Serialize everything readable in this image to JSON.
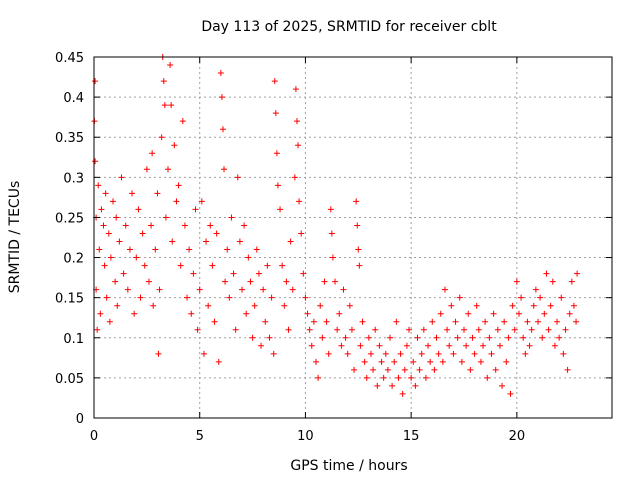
{
  "chart_data": {
    "type": "scatter",
    "title": "Day 113 of 2025, SRMTID for receiver cblt",
    "xlabel": "GPS time / hours",
    "ylabel": "SRMTID / TECUs",
    "xlim": [
      0,
      24.5
    ],
    "ylim": [
      0,
      0.45
    ],
    "xticks": [
      0,
      5,
      10,
      15,
      20
    ],
    "xtick_labels": [
      "0",
      "5",
      "10",
      "15",
      "20"
    ],
    "yticks": [
      0,
      0.05,
      0.1,
      0.15,
      0.2,
      0.25,
      0.3,
      0.35,
      0.4,
      0.45
    ],
    "ytick_labels": [
      "0",
      "0.05",
      "0.1",
      "0.15",
      "0.2",
      "0.25",
      "0.3",
      "0.35",
      "0.4",
      "0.45"
    ],
    "grid": true,
    "marker": "+",
    "color": "#ff0000",
    "series": [
      {
        "points": [
          [
            0.02,
            0.37
          ],
          [
            0.05,
            0.42
          ],
          [
            0.05,
            0.32
          ],
          [
            0.1,
            0.25
          ],
          [
            0.1,
            0.16
          ],
          [
            0.15,
            0.11
          ],
          [
            0.2,
            0.29
          ],
          [
            0.25,
            0.21
          ],
          [
            0.3,
            0.13
          ],
          [
            0.35,
            0.26
          ],
          [
            0.45,
            0.24
          ],
          [
            0.5,
            0.19
          ],
          [
            0.55,
            0.28
          ],
          [
            0.6,
            0.15
          ],
          [
            0.7,
            0.23
          ],
          [
            0.75,
            0.12
          ],
          [
            0.8,
            0.2
          ],
          [
            0.9,
            0.27
          ],
          [
            1.0,
            0.17
          ],
          [
            1.05,
            0.25
          ],
          [
            1.1,
            0.14
          ],
          [
            1.2,
            0.22
          ],
          [
            1.3,
            0.3
          ],
          [
            1.4,
            0.18
          ],
          [
            1.5,
            0.24
          ],
          [
            1.6,
            0.16
          ],
          [
            1.7,
            0.21
          ],
          [
            1.8,
            0.28
          ],
          [
            1.9,
            0.13
          ],
          [
            2.0,
            0.2
          ],
          [
            2.1,
            0.26
          ],
          [
            2.2,
            0.15
          ],
          [
            2.3,
            0.23
          ],
          [
            2.4,
            0.19
          ],
          [
            2.5,
            0.31
          ],
          [
            2.6,
            0.17
          ],
          [
            2.7,
            0.24
          ],
          [
            2.75,
            0.33
          ],
          [
            2.8,
            0.14
          ],
          [
            2.9,
            0.21
          ],
          [
            3.0,
            0.28
          ],
          [
            3.05,
            0.08
          ],
          [
            3.1,
            0.16
          ],
          [
            3.2,
            0.35
          ],
          [
            3.25,
            0.45
          ],
          [
            3.3,
            0.42
          ],
          [
            3.35,
            0.39
          ],
          [
            3.4,
            0.25
          ],
          [
            3.5,
            0.31
          ],
          [
            3.6,
            0.44
          ],
          [
            3.65,
            0.39
          ],
          [
            3.7,
            0.22
          ],
          [
            3.8,
            0.34
          ],
          [
            3.9,
            0.27
          ],
          [
            4.0,
            0.29
          ],
          [
            4.1,
            0.19
          ],
          [
            4.2,
            0.37
          ],
          [
            4.3,
            0.24
          ],
          [
            4.4,
            0.15
          ],
          [
            4.5,
            0.21
          ],
          [
            4.6,
            0.13
          ],
          [
            4.7,
            0.18
          ],
          [
            4.8,
            0.26
          ],
          [
            4.9,
            0.11
          ],
          [
            5.0,
            0.16
          ],
          [
            5.1,
            0.27
          ],
          [
            5.2,
            0.08
          ],
          [
            5.3,
            0.22
          ],
          [
            5.4,
            0.14
          ],
          [
            5.5,
            0.24
          ],
          [
            5.6,
            0.19
          ],
          [
            5.7,
            0.12
          ],
          [
            5.8,
            0.23
          ],
          [
            5.9,
            0.07
          ],
          [
            6.0,
            0.43
          ],
          [
            6.05,
            0.4
          ],
          [
            6.1,
            0.36
          ],
          [
            6.15,
            0.31
          ],
          [
            6.2,
            0.17
          ],
          [
            6.3,
            0.21
          ],
          [
            6.4,
            0.15
          ],
          [
            6.5,
            0.25
          ],
          [
            6.6,
            0.18
          ],
          [
            6.7,
            0.11
          ],
          [
            6.8,
            0.3
          ],
          [
            6.9,
            0.22
          ],
          [
            7.0,
            0.16
          ],
          [
            7.1,
            0.24
          ],
          [
            7.2,
            0.13
          ],
          [
            7.3,
            0.2
          ],
          [
            7.4,
            0.17
          ],
          [
            7.5,
            0.1
          ],
          [
            7.6,
            0.14
          ],
          [
            7.7,
            0.21
          ],
          [
            7.8,
            0.18
          ],
          [
            7.9,
            0.09
          ],
          [
            8.0,
            0.16
          ],
          [
            8.1,
            0.12
          ],
          [
            8.2,
            0.19
          ],
          [
            8.3,
            0.1
          ],
          [
            8.4,
            0.15
          ],
          [
            8.5,
            0.08
          ],
          [
            8.55,
            0.42
          ],
          [
            8.6,
            0.38
          ],
          [
            8.65,
            0.33
          ],
          [
            8.7,
            0.29
          ],
          [
            8.8,
            0.26
          ],
          [
            8.9,
            0.19
          ],
          [
            9.0,
            0.14
          ],
          [
            9.1,
            0.17
          ],
          [
            9.2,
            0.11
          ],
          [
            9.3,
            0.22
          ],
          [
            9.4,
            0.16
          ],
          [
            9.5,
            0.3
          ],
          [
            9.55,
            0.41
          ],
          [
            9.6,
            0.37
          ],
          [
            9.65,
            0.34
          ],
          [
            9.7,
            0.27
          ],
          [
            9.8,
            0.23
          ],
          [
            9.9,
            0.18
          ],
          [
            10.0,
            0.15
          ],
          [
            10.1,
            0.13
          ],
          [
            10.2,
            0.11
          ],
          [
            10.3,
            0.09
          ],
          [
            10.4,
            0.12
          ],
          [
            10.5,
            0.07
          ],
          [
            10.6,
            0.05
          ],
          [
            10.7,
            0.14
          ],
          [
            10.8,
            0.1
          ],
          [
            10.9,
            0.17
          ],
          [
            11.0,
            0.12
          ],
          [
            11.1,
            0.08
          ],
          [
            11.2,
            0.26
          ],
          [
            11.25,
            0.23
          ],
          [
            11.3,
            0.2
          ],
          [
            11.4,
            0.17
          ],
          [
            11.5,
            0.11
          ],
          [
            11.6,
            0.13
          ],
          [
            11.7,
            0.09
          ],
          [
            11.8,
            0.16
          ],
          [
            11.9,
            0.1
          ],
          [
            12.0,
            0.08
          ],
          [
            12.1,
            0.14
          ],
          [
            12.2,
            0.11
          ],
          [
            12.3,
            0.06
          ],
          [
            12.4,
            0.27
          ],
          [
            12.45,
            0.24
          ],
          [
            12.5,
            0.21
          ],
          [
            12.55,
            0.19
          ],
          [
            12.6,
            0.09
          ],
          [
            12.7,
            0.12
          ],
          [
            12.8,
            0.07
          ],
          [
            12.9,
            0.05
          ],
          [
            13.0,
            0.1
          ],
          [
            13.1,
            0.08
          ],
          [
            13.2,
            0.06
          ],
          [
            13.3,
            0.11
          ],
          [
            13.4,
            0.04
          ],
          [
            13.5,
            0.09
          ],
          [
            13.6,
            0.07
          ],
          [
            13.7,
            0.05
          ],
          [
            13.8,
            0.08
          ],
          [
            13.9,
            0.06
          ],
          [
            14.0,
            0.1
          ],
          [
            14.1,
            0.04
          ],
          [
            14.2,
            0.07
          ],
          [
            14.3,
            0.12
          ],
          [
            14.4,
            0.05
          ],
          [
            14.5,
            0.08
          ],
          [
            14.6,
            0.03
          ],
          [
            14.7,
            0.06
          ],
          [
            14.8,
            0.09
          ],
          [
            14.9,
            0.11
          ],
          [
            15.0,
            0.05
          ],
          [
            15.1,
            0.07
          ],
          [
            15.2,
            0.04
          ],
          [
            15.3,
            0.1
          ],
          [
            15.4,
            0.06
          ],
          [
            15.5,
            0.08
          ],
          [
            15.6,
            0.11
          ],
          [
            15.7,
            0.05
          ],
          [
            15.8,
            0.09
          ],
          [
            15.9,
            0.07
          ],
          [
            16.0,
            0.12
          ],
          [
            16.1,
            0.06
          ],
          [
            16.2,
            0.1
          ],
          [
            16.3,
            0.08
          ],
          [
            16.4,
            0.13
          ],
          [
            16.5,
            0.07
          ],
          [
            16.6,
            0.16
          ],
          [
            16.7,
            0.11
          ],
          [
            16.8,
            0.09
          ],
          [
            16.9,
            0.14
          ],
          [
            17.0,
            0.08
          ],
          [
            17.1,
            0.12
          ],
          [
            17.2,
            0.1
          ],
          [
            17.3,
            0.15
          ],
          [
            17.4,
            0.07
          ],
          [
            17.5,
            0.11
          ],
          [
            17.6,
            0.09
          ],
          [
            17.7,
            0.13
          ],
          [
            17.8,
            0.06
          ],
          [
            17.9,
            0.1
          ],
          [
            18.0,
            0.08
          ],
          [
            18.1,
            0.14
          ],
          [
            18.2,
            0.11
          ],
          [
            18.3,
            0.07
          ],
          [
            18.4,
            0.09
          ],
          [
            18.5,
            0.12
          ],
          [
            18.6,
            0.05
          ],
          [
            18.7,
            0.1
          ],
          [
            18.8,
            0.08
          ],
          [
            18.9,
            0.13
          ],
          [
            19.0,
            0.06
          ],
          [
            19.1,
            0.11
          ],
          [
            19.2,
            0.09
          ],
          [
            19.3,
            0.04
          ],
          [
            19.4,
            0.12
          ],
          [
            19.5,
            0.07
          ],
          [
            19.6,
            0.1
          ],
          [
            19.7,
            0.03
          ],
          [
            19.8,
            0.14
          ],
          [
            19.9,
            0.11
          ],
          [
            20.0,
            0.17
          ],
          [
            20.1,
            0.13
          ],
          [
            20.2,
            0.15
          ],
          [
            20.3,
            0.1
          ],
          [
            20.4,
            0.08
          ],
          [
            20.5,
            0.12
          ],
          [
            20.6,
            0.09
          ],
          [
            20.7,
            0.11
          ],
          [
            20.8,
            0.14
          ],
          [
            20.9,
            0.16
          ],
          [
            21.0,
            0.12
          ],
          [
            21.1,
            0.15
          ],
          [
            21.2,
            0.1
          ],
          [
            21.3,
            0.13
          ],
          [
            21.4,
            0.18
          ],
          [
            21.5,
            0.11
          ],
          [
            21.6,
            0.14
          ],
          [
            21.7,
            0.17
          ],
          [
            21.8,
            0.09
          ],
          [
            21.9,
            0.12
          ],
          [
            22.0,
            0.1
          ],
          [
            22.1,
            0.15
          ],
          [
            22.2,
            0.08
          ],
          [
            22.3,
            0.11
          ],
          [
            22.4,
            0.06
          ],
          [
            22.5,
            0.13
          ],
          [
            22.6,
            0.17
          ],
          [
            22.7,
            0.14
          ],
          [
            22.8,
            0.12
          ],
          [
            22.85,
            0.18
          ]
        ]
      }
    ]
  }
}
